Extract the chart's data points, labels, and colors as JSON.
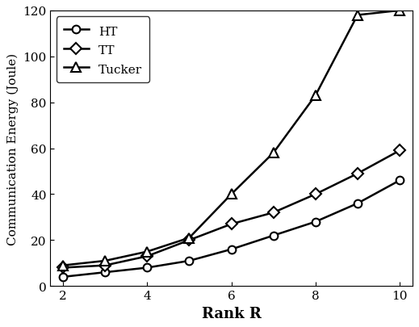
{
  "x": [
    2,
    3,
    4,
    5,
    6,
    7,
    8,
    9,
    10
  ],
  "HT": [
    4,
    6,
    8,
    11,
    16,
    22,
    28,
    36,
    46
  ],
  "TT": [
    8,
    9,
    13,
    20,
    27,
    32,
    40,
    49,
    59
  ],
  "Tucker": [
    9,
    11,
    15,
    21,
    40,
    58,
    83,
    118,
    120
  ],
  "xlabel": "Rank R",
  "ylabel": "Communication Energy (Joule)",
  "ylim": [
    0,
    120
  ],
  "xlim": [
    1.7,
    10.3
  ],
  "yticks": [
    0,
    20,
    40,
    60,
    80,
    100,
    120
  ],
  "xticks": [
    2,
    4,
    6,
    8,
    10
  ],
  "legend_labels": [
    "HT",
    "TT",
    "Tucker"
  ],
  "line_color": "black",
  "background_color": "#ffffff"
}
